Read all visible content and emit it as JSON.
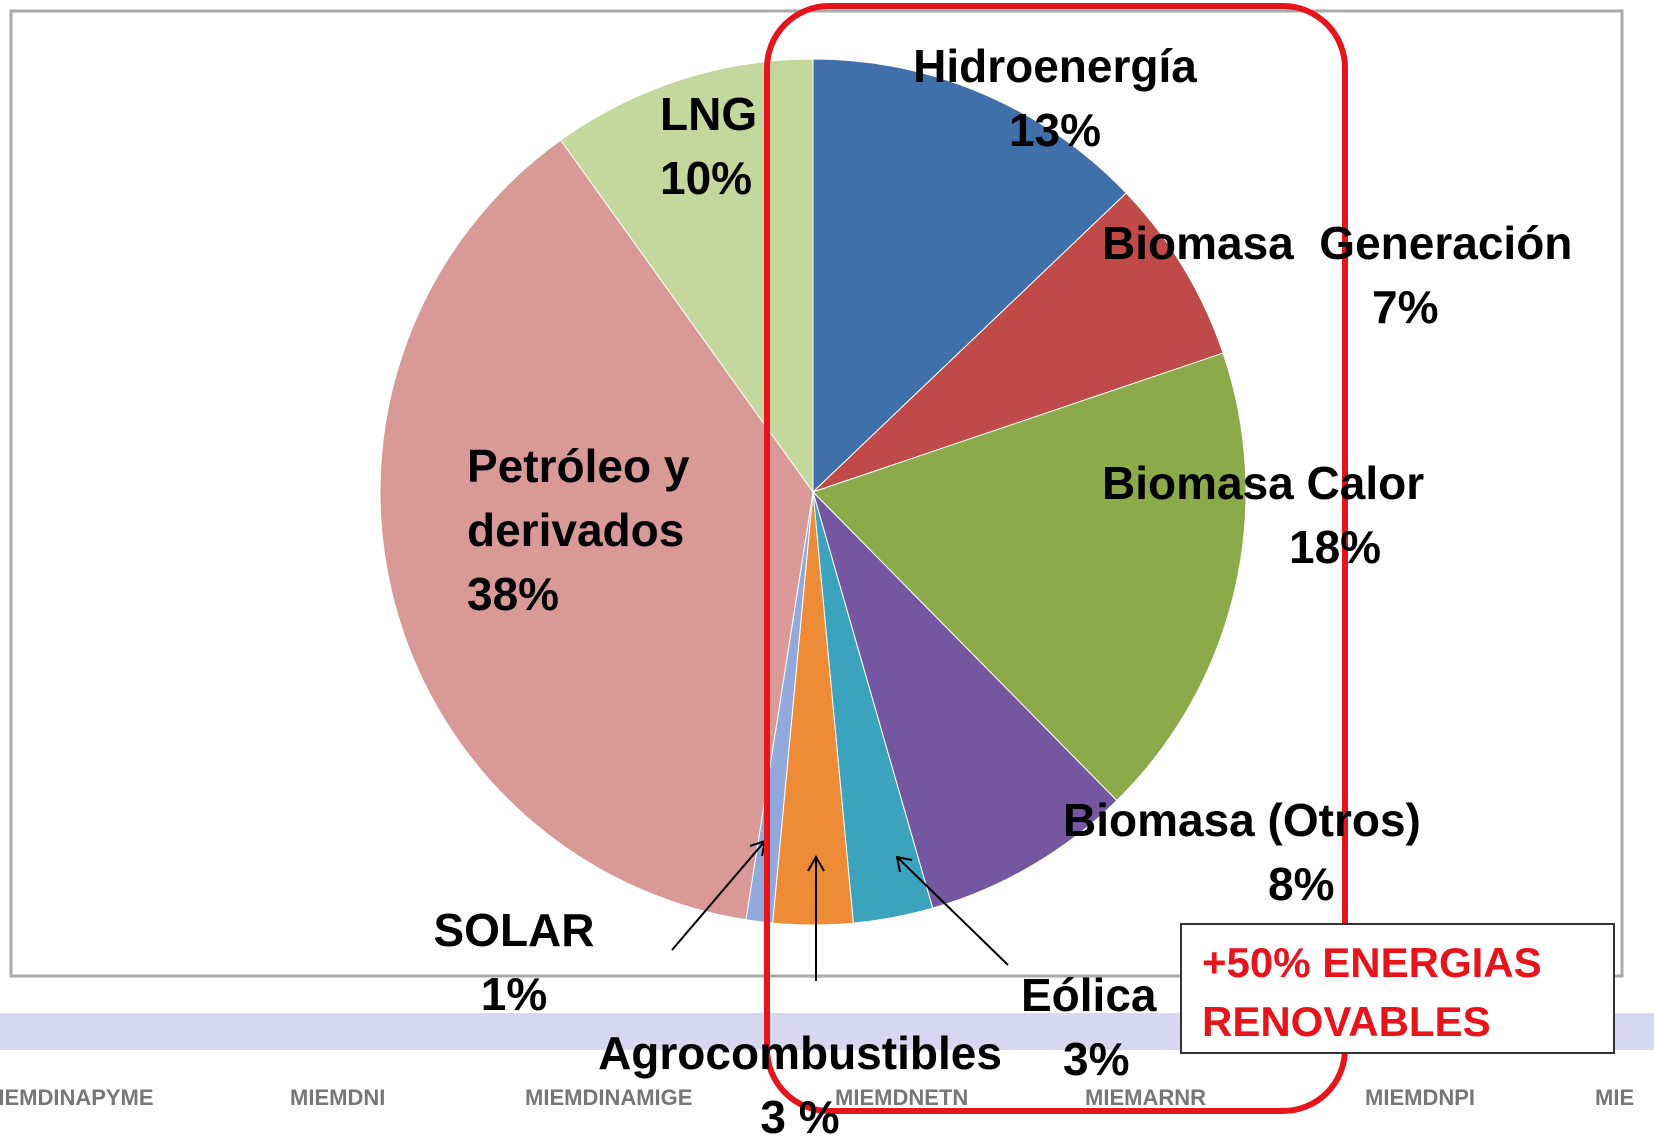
{
  "chart_data": {
    "type": "pie",
    "categories": [
      "Hidroenergía",
      "Biomasa  Generación",
      "Biomasa Calor",
      "Biomasa (Otros)",
      "Eólica",
      "Agrocombustibles",
      "SOLAR",
      "Petróleo y derivados",
      "LNG"
    ],
    "values": [
      13,
      7,
      18,
      8,
      3,
      3,
      1,
      38,
      10
    ],
    "value_labels": [
      "13%",
      "7%",
      "18%",
      "8%",
      "3%",
      "3 %",
      "1%",
      "38%",
      "10%"
    ],
    "colors": [
      "#4070aa",
      "#bf4a47",
      "#8bab4a",
      "#7556a0",
      "#3ba3be",
      "#ee8b36",
      "#92aadb",
      "#d99997",
      "#c4d79d"
    ],
    "annotation": "+50% ENERGIAS RENOVABLES"
  },
  "footer": {
    "logos": [
      "MIEMDINAPYME",
      "MIEMDNI",
      "MIEMDINAMIGE",
      "MIEMDNETN",
      "MIEMARNR",
      "MIEMDNPI",
      "MIE"
    ]
  }
}
